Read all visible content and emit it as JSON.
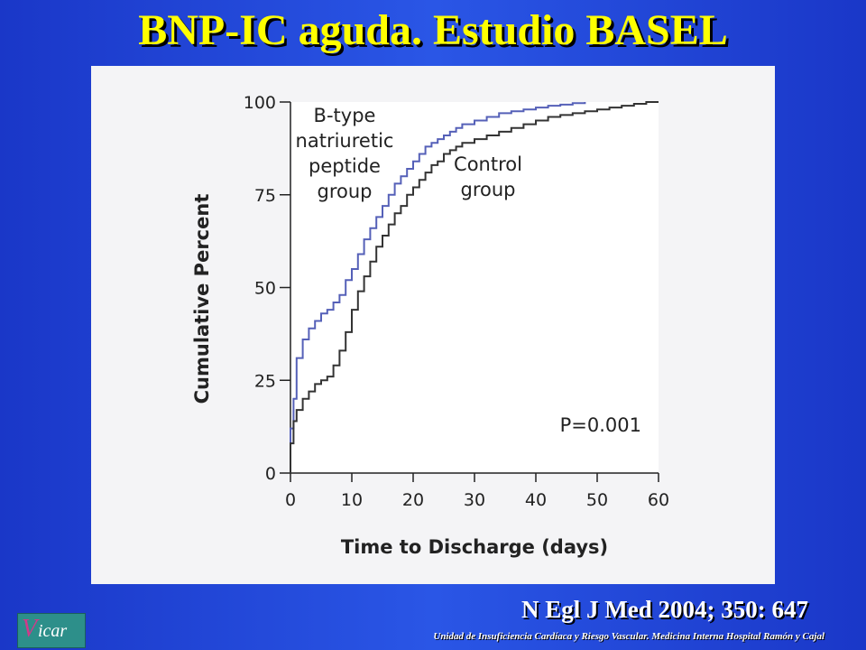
{
  "slide": {
    "title": "BNP-IC aguda. Estudio BASEL",
    "citation": "N Egl J Med 2004; 350: 647",
    "footer": "Unidad de Insuficiencia Cardíaca y Riesgo Vascular. Medicina Interna Hospital Ramón y Cajal",
    "logo_text": "icar",
    "logo_mark": "V",
    "colors": {
      "background": "#2244d8",
      "title": "#ffff00",
      "bnp_line": "#5560b8",
      "control_line": "#333333"
    }
  },
  "chart_data": {
    "type": "line",
    "xlabel": "Time to Discharge (days)",
    "ylabel": "Cumulative Percent",
    "xlim": [
      0,
      60
    ],
    "ylim": [
      0,
      100
    ],
    "xticks": [
      0,
      10,
      20,
      30,
      40,
      50,
      60
    ],
    "yticks": [
      0,
      25,
      50,
      75,
      100
    ],
    "annotation": "P=0.001",
    "series": [
      {
        "name": "B-type natriuretic peptide group",
        "label_lines": [
          "B-type",
          "natriuretic",
          "peptide",
          "group"
        ],
        "x": [
          0,
          0.5,
          1,
          2,
          3,
          4,
          5,
          6,
          7,
          8,
          9,
          10,
          11,
          12,
          13,
          14,
          15,
          16,
          17,
          18,
          19,
          20,
          21,
          22,
          23,
          24,
          25,
          26,
          27,
          28,
          30,
          32,
          34,
          36,
          38,
          40,
          42,
          44,
          46,
          48
        ],
        "y": [
          12,
          20,
          31,
          36,
          39,
          41,
          43,
          44,
          46,
          48,
          52,
          55,
          59,
          63,
          66,
          69,
          72,
          75,
          78,
          80,
          82,
          84,
          86,
          88,
          89,
          90,
          91,
          92,
          93,
          94,
          95,
          96,
          97,
          97.5,
          98,
          98.5,
          99,
          99.3,
          99.7,
          100
        ]
      },
      {
        "name": "Control group",
        "label_lines": [
          "Control",
          "group"
        ],
        "x": [
          0,
          0.5,
          1,
          2,
          3,
          4,
          5,
          6,
          7,
          8,
          9,
          10,
          11,
          12,
          13,
          14,
          15,
          16,
          17,
          18,
          19,
          20,
          21,
          22,
          23,
          24,
          25,
          26,
          27,
          28,
          30,
          32,
          34,
          36,
          38,
          40,
          42,
          44,
          46,
          48,
          50,
          52,
          54,
          56,
          58,
          60
        ],
        "y": [
          8,
          14,
          17,
          20,
          22,
          24,
          25,
          26,
          29,
          33,
          38,
          44,
          49,
          53,
          57,
          61,
          64,
          67,
          70,
          72,
          75,
          77,
          79,
          81,
          83,
          84,
          86,
          87,
          88,
          89,
          90,
          91,
          92,
          93,
          94,
          95,
          96,
          96.5,
          97,
          97.5,
          98,
          98.5,
          99,
          99.5,
          100,
          100
        ]
      }
    ]
  }
}
